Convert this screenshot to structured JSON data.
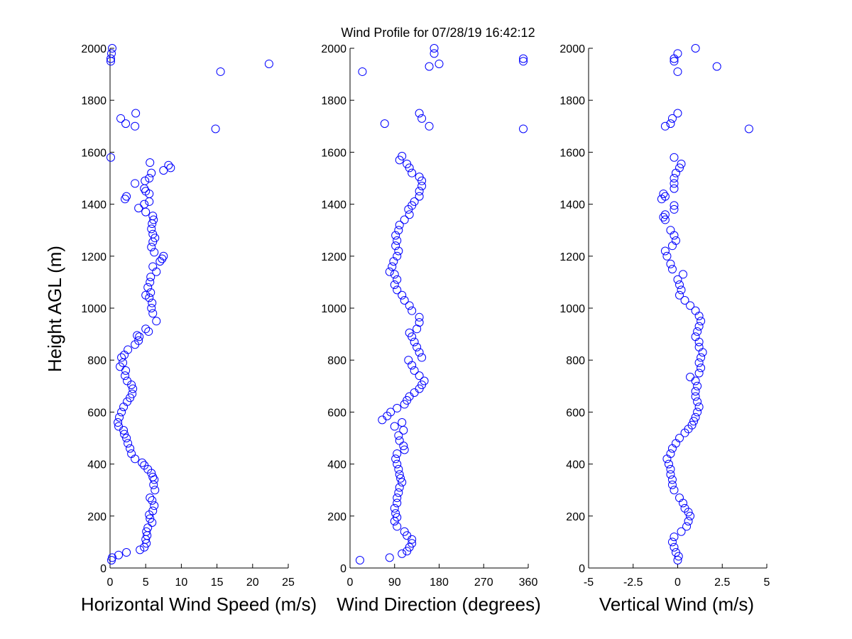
{
  "title": "Wind Profile for  07/28/19 16:42:12",
  "chart_data": [
    {
      "type": "scatter",
      "name": "speed",
      "xlabel": "Horizontal Wind Speed (m/s)",
      "ylabel": "Height AGL (m)",
      "xlim": [
        0,
        25
      ],
      "ylim": [
        0,
        2000
      ],
      "xticks": [
        "0",
        "5",
        "10",
        "15",
        "20",
        "25"
      ],
      "yticks": [
        "0",
        "200",
        "400",
        "600",
        "800",
        "1000",
        "1200",
        "1400",
        "1600",
        "1800",
        "2000"
      ],
      "marker_color": "#0000ff",
      "grid": false,
      "points": [
        [
          0.2,
          30
        ],
        [
          0.3,
          40
        ],
        [
          1.2,
          50
        ],
        [
          2.3,
          60
        ],
        [
          4.2,
          70
        ],
        [
          4.8,
          80
        ],
        [
          5.1,
          95
        ],
        [
          5.0,
          110
        ],
        [
          5.2,
          125
        ],
        [
          5.1,
          140
        ],
        [
          5.3,
          155
        ],
        [
          5.9,
          175
        ],
        [
          5.6,
          190
        ],
        [
          5.5,
          205
        ],
        [
          6.0,
          220
        ],
        [
          6.2,
          240
        ],
        [
          5.9,
          260
        ],
        [
          5.6,
          270
        ],
        [
          6.3,
          300
        ],
        [
          6.1,
          320
        ],
        [
          6.2,
          340
        ],
        [
          6.0,
          350
        ],
        [
          5.8,
          365
        ],
        [
          5.3,
          380
        ],
        [
          4.8,
          395
        ],
        [
          4.5,
          405
        ],
        [
          3.5,
          420
        ],
        [
          3.0,
          440
        ],
        [
          2.8,
          460
        ],
        [
          2.5,
          480
        ],
        [
          2.3,
          500
        ],
        [
          2.0,
          515
        ],
        [
          1.9,
          530
        ],
        [
          1.2,
          545
        ],
        [
          1.1,
          560
        ],
        [
          1.3,
          580
        ],
        [
          1.6,
          600
        ],
        [
          1.9,
          620
        ],
        [
          2.4,
          640
        ],
        [
          2.8,
          655
        ],
        [
          3.1,
          670
        ],
        [
          3.2,
          690
        ],
        [
          3.0,
          705
        ],
        [
          2.4,
          720
        ],
        [
          2.1,
          740
        ],
        [
          2.2,
          760
        ],
        [
          1.4,
          775
        ],
        [
          1.8,
          790
        ],
        [
          1.6,
          810
        ],
        [
          2.0,
          820
        ],
        [
          2.5,
          840
        ],
        [
          3.5,
          860
        ],
        [
          4.0,
          875
        ],
        [
          4.1,
          890
        ],
        [
          3.8,
          895
        ],
        [
          5.4,
          910
        ],
        [
          5.0,
          920
        ],
        [
          6.5,
          950
        ],
        [
          6.0,
          980
        ],
        [
          5.8,
          1000
        ],
        [
          5.9,
          1020
        ],
        [
          5.5,
          1040
        ],
        [
          5.0,
          1050
        ],
        [
          5.7,
          1060
        ],
        [
          5.3,
          1080
        ],
        [
          5.6,
          1100
        ],
        [
          5.7,
          1120
        ],
        [
          6.5,
          1140
        ],
        [
          6.0,
          1160
        ],
        [
          7.0,
          1180
        ],
        [
          7.5,
          1200
        ],
        [
          7.3,
          1190
        ],
        [
          6.2,
          1215
        ],
        [
          5.8,
          1235
        ],
        [
          6.0,
          1255
        ],
        [
          6.3,
          1270
        ],
        [
          6.0,
          1285
        ],
        [
          5.8,
          1305
        ],
        [
          5.9,
          1325
        ],
        [
          6.1,
          1340
        ],
        [
          6.0,
          1355
        ],
        [
          5.0,
          1370
        ],
        [
          4.0,
          1385
        ],
        [
          4.8,
          1400
        ],
        [
          5.5,
          1410
        ],
        [
          2.1,
          1420
        ],
        [
          2.3,
          1430
        ],
        [
          5.5,
          1440
        ],
        [
          5.0,
          1450
        ],
        [
          4.8,
          1460
        ],
        [
          3.5,
          1480
        ],
        [
          4.9,
          1490
        ],
        [
          5.5,
          1500
        ],
        [
          5.8,
          1520
        ],
        [
          7.5,
          1530
        ],
        [
          8.5,
          1540
        ],
        [
          8.2,
          1550
        ],
        [
          5.6,
          1560
        ],
        [
          0.1,
          1580
        ],
        [
          14.8,
          1690
        ],
        [
          3.5,
          1700
        ],
        [
          2.2,
          1710
        ],
        [
          1.5,
          1730
        ],
        [
          3.6,
          1750
        ],
        [
          15.5,
          1910
        ],
        [
          22.3,
          1940
        ],
        [
          0.1,
          1950
        ],
        [
          0.1,
          1960
        ],
        [
          0.2,
          1980
        ],
        [
          0.3,
          2000
        ]
      ]
    },
    {
      "type": "scatter",
      "name": "direction",
      "xlabel": "Wind Direction (degrees)",
      "xlim": [
        0,
        360
      ],
      "ylim": [
        0,
        2000
      ],
      "xticks": [
        "0",
        "90",
        "180",
        "270",
        "360"
      ],
      "yticks": [
        "0",
        "200",
        "400",
        "600",
        "800",
        "1000",
        "1200",
        "1400",
        "1600",
        "1800",
        "2000"
      ],
      "marker_color": "#0000ff",
      "grid": false,
      "points": [
        [
          20,
          30
        ],
        [
          80,
          40
        ],
        [
          105,
          55
        ],
        [
          115,
          65
        ],
        [
          120,
          80
        ],
        [
          125,
          95
        ],
        [
          125,
          110
        ],
        [
          115,
          125
        ],
        [
          110,
          140
        ],
        [
          95,
          160
        ],
        [
          90,
          180
        ],
        [
          95,
          195
        ],
        [
          92,
          210
        ],
        [
          90,
          230
        ],
        [
          95,
          250
        ],
        [
          95,
          270
        ],
        [
          98,
          290
        ],
        [
          100,
          310
        ],
        [
          105,
          330
        ],
        [
          102,
          345
        ],
        [
          100,
          360
        ],
        [
          98,
          380
        ],
        [
          95,
          400
        ],
        [
          92,
          420
        ],
        [
          95,
          440
        ],
        [
          110,
          455
        ],
        [
          108,
          470
        ],
        [
          100,
          490
        ],
        [
          98,
          510
        ],
        [
          108,
          530
        ],
        [
          90,
          545
        ],
        [
          105,
          560
        ],
        [
          65,
          570
        ],
        [
          75,
          585
        ],
        [
          82,
          600
        ],
        [
          95,
          615
        ],
        [
          110,
          630
        ],
        [
          115,
          645
        ],
        [
          120,
          660
        ],
        [
          130,
          675
        ],
        [
          140,
          690
        ],
        [
          145,
          705
        ],
        [
          150,
          720
        ],
        [
          140,
          740
        ],
        [
          130,
          760
        ],
        [
          125,
          780
        ],
        [
          118,
          800
        ],
        [
          145,
          810
        ],
        [
          140,
          830
        ],
        [
          135,
          850
        ],
        [
          130,
          870
        ],
        [
          125,
          890
        ],
        [
          120,
          905
        ],
        [
          135,
          920
        ],
        [
          140,
          945
        ],
        [
          140,
          965
        ],
        [
          125,
          990
        ],
        [
          120,
          1010
        ],
        [
          110,
          1030
        ],
        [
          105,
          1050
        ],
        [
          95,
          1070
        ],
        [
          90,
          1090
        ],
        [
          95,
          1110
        ],
        [
          90,
          1130
        ],
        [
          80,
          1140
        ],
        [
          85,
          1160
        ],
        [
          88,
          1180
        ],
        [
          95,
          1200
        ],
        [
          98,
          1220
        ],
        [
          92,
          1240
        ],
        [
          95,
          1260
        ],
        [
          92,
          1280
        ],
        [
          98,
          1300
        ],
        [
          100,
          1320
        ],
        [
          110,
          1340
        ],
        [
          120,
          1360
        ],
        [
          118,
          1380
        ],
        [
          125,
          1395
        ],
        [
          130,
          1410
        ],
        [
          140,
          1430
        ],
        [
          140,
          1450
        ],
        [
          145,
          1470
        ],
        [
          145,
          1490
        ],
        [
          140,
          1505
        ],
        [
          125,
          1520
        ],
        [
          120,
          1540
        ],
        [
          115,
          1555
        ],
        [
          100,
          1570
        ],
        [
          105,
          1585
        ],
        [
          70,
          1710
        ],
        [
          160,
          1700
        ],
        [
          140,
          1750
        ],
        [
          145,
          1730
        ],
        [
          350,
          1690
        ],
        [
          25,
          1910
        ],
        [
          180,
          1940
        ],
        [
          160,
          1930
        ],
        [
          350,
          1950
        ],
        [
          350,
          1960
        ],
        [
          170,
          1980
        ],
        [
          170,
          2000
        ]
      ]
    },
    {
      "type": "scatter",
      "name": "vertical",
      "xlabel": "Vertical Wind (m/s)",
      "xlim": [
        -5,
        5
      ],
      "ylim": [
        0,
        2000
      ],
      "xticks": [
        "-5",
        "-2.5",
        "0",
        "2.5",
        "5"
      ],
      "yticks": [
        "0",
        "200",
        "400",
        "600",
        "800",
        "1000",
        "1200",
        "1400",
        "1600",
        "1800",
        "2000"
      ],
      "marker_color": "#0000ff",
      "grid": false,
      "points": [
        [
          0.0,
          30
        ],
        [
          0.05,
          45
        ],
        [
          -0.1,
          60
        ],
        [
          -0.2,
          80
        ],
        [
          -0.3,
          100
        ],
        [
          -0.2,
          120
        ],
        [
          0.2,
          140
        ],
        [
          0.5,
          160
        ],
        [
          0.6,
          180
        ],
        [
          0.7,
          200
        ],
        [
          0.6,
          215
        ],
        [
          0.4,
          230
        ],
        [
          0.3,
          250
        ],
        [
          0.1,
          270
        ],
        [
          -0.2,
          300
        ],
        [
          -0.3,
          320
        ],
        [
          -0.3,
          340
        ],
        [
          -0.4,
          360
        ],
        [
          -0.4,
          380
        ],
        [
          -0.5,
          400
        ],
        [
          -0.6,
          420
        ],
        [
          -0.4,
          440
        ],
        [
          -0.3,
          460
        ],
        [
          -0.1,
          480
        ],
        [
          0.1,
          500
        ],
        [
          0.4,
          520
        ],
        [
          0.6,
          535
        ],
        [
          0.8,
          550
        ],
        [
          0.9,
          565
        ],
        [
          1.0,
          580
        ],
        [
          1.1,
          600
        ],
        [
          1.2,
          620
        ],
        [
          1.1,
          640
        ],
        [
          1.0,
          660
        ],
        [
          1.0,
          680
        ],
        [
          1.1,
          700
        ],
        [
          1.0,
          720
        ],
        [
          0.7,
          735
        ],
        [
          1.2,
          750
        ],
        [
          1.3,
          770
        ],
        [
          1.2,
          790
        ],
        [
          1.3,
          810
        ],
        [
          1.4,
          830
        ],
        [
          1.2,
          850
        ],
        [
          1.2,
          870
        ],
        [
          1.0,
          890
        ],
        [
          1.1,
          910
        ],
        [
          1.2,
          930
        ],
        [
          1.3,
          950
        ],
        [
          1.2,
          970
        ],
        [
          1.0,
          990
        ],
        [
          0.7,
          1010
        ],
        [
          0.4,
          1030
        ],
        [
          0.1,
          1050
        ],
        [
          0.2,
          1070
        ],
        [
          0.1,
          1090
        ],
        [
          0.0,
          1110
        ],
        [
          0.3,
          1130
        ],
        [
          -0.3,
          1150
        ],
        [
          -0.4,
          1170
        ],
        [
          -0.6,
          1200
        ],
        [
          -0.7,
          1220
        ],
        [
          -0.3,
          1240
        ],
        [
          -0.1,
          1260
        ],
        [
          -0.2,
          1280
        ],
        [
          -0.4,
          1300
        ],
        [
          -0.7,
          1340
        ],
        [
          -0.8,
          1350
        ],
        [
          -0.7,
          1360
        ],
        [
          -0.2,
          1380
        ],
        [
          -0.2,
          1395
        ],
        [
          -0.9,
          1420
        ],
        [
          -0.7,
          1430
        ],
        [
          -0.8,
          1440
        ],
        [
          -0.2,
          1460
        ],
        [
          -0.2,
          1480
        ],
        [
          -0.2,
          1500
        ],
        [
          -0.1,
          1520
        ],
        [
          0.1,
          1540
        ],
        [
          0.2,
          1555
        ],
        [
          -0.2,
          1580
        ],
        [
          4.0,
          1690
        ],
        [
          -0.7,
          1700
        ],
        [
          -0.4,
          1710
        ],
        [
          -0.3,
          1730
        ],
        [
          0.0,
          1750
        ],
        [
          0.0,
          1910
        ],
        [
          2.2,
          1930
        ],
        [
          -0.2,
          1950
        ],
        [
          -0.2,
          1960
        ],
        [
          0.0,
          1980
        ],
        [
          1.0,
          2000
        ]
      ]
    }
  ]
}
